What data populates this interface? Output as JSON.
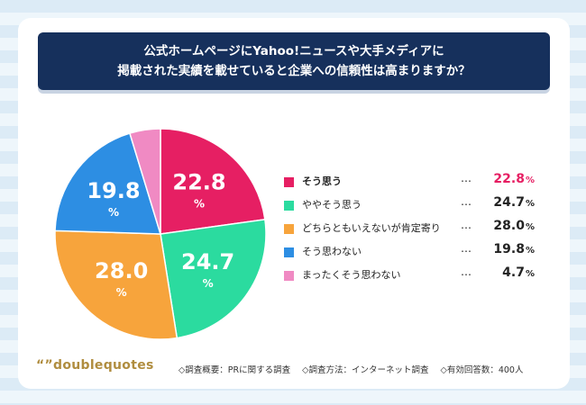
{
  "title": {
    "line1": "公式ホームページにYahoo!ニュースや大手メディアに",
    "line2": "掲載された実績を載せていると企業への信頼性は高まりますか？"
  },
  "chart_data": {
    "type": "pie",
    "start_angle_deg": 0,
    "direction": "clockwise",
    "unit": "%",
    "slices": [
      {
        "label": "そう思う",
        "value": 22.8,
        "value_text": "22.8",
        "color": "#e61f63"
      },
      {
        "label": "ややそう思う",
        "value": 24.7,
        "value_text": "24.7",
        "color": "#2bdb9f"
      },
      {
        "label": "どちらともいえないが肯定寄り",
        "value": 28.0,
        "value_text": "28.0",
        "color": "#f7a43c"
      },
      {
        "label": "そう思わない",
        "value": 19.8,
        "value_text": "19.8",
        "color": "#2d8ee3"
      },
      {
        "label": "まったくそう思わない",
        "value": 4.7,
        "value_text": "4.7",
        "color": "#f08ac3"
      }
    ],
    "legend_placement": "right",
    "highlight_index": 0
  },
  "legend": {
    "dots": "…",
    "pct": "%"
  },
  "logo": "“”doublequotes",
  "footer": {
    "survey_summary": "◇調査概要：PRに関する調査",
    "survey_method": "◇調査方法：インターネット調査",
    "respondents": "◇有効回答数：400人"
  }
}
